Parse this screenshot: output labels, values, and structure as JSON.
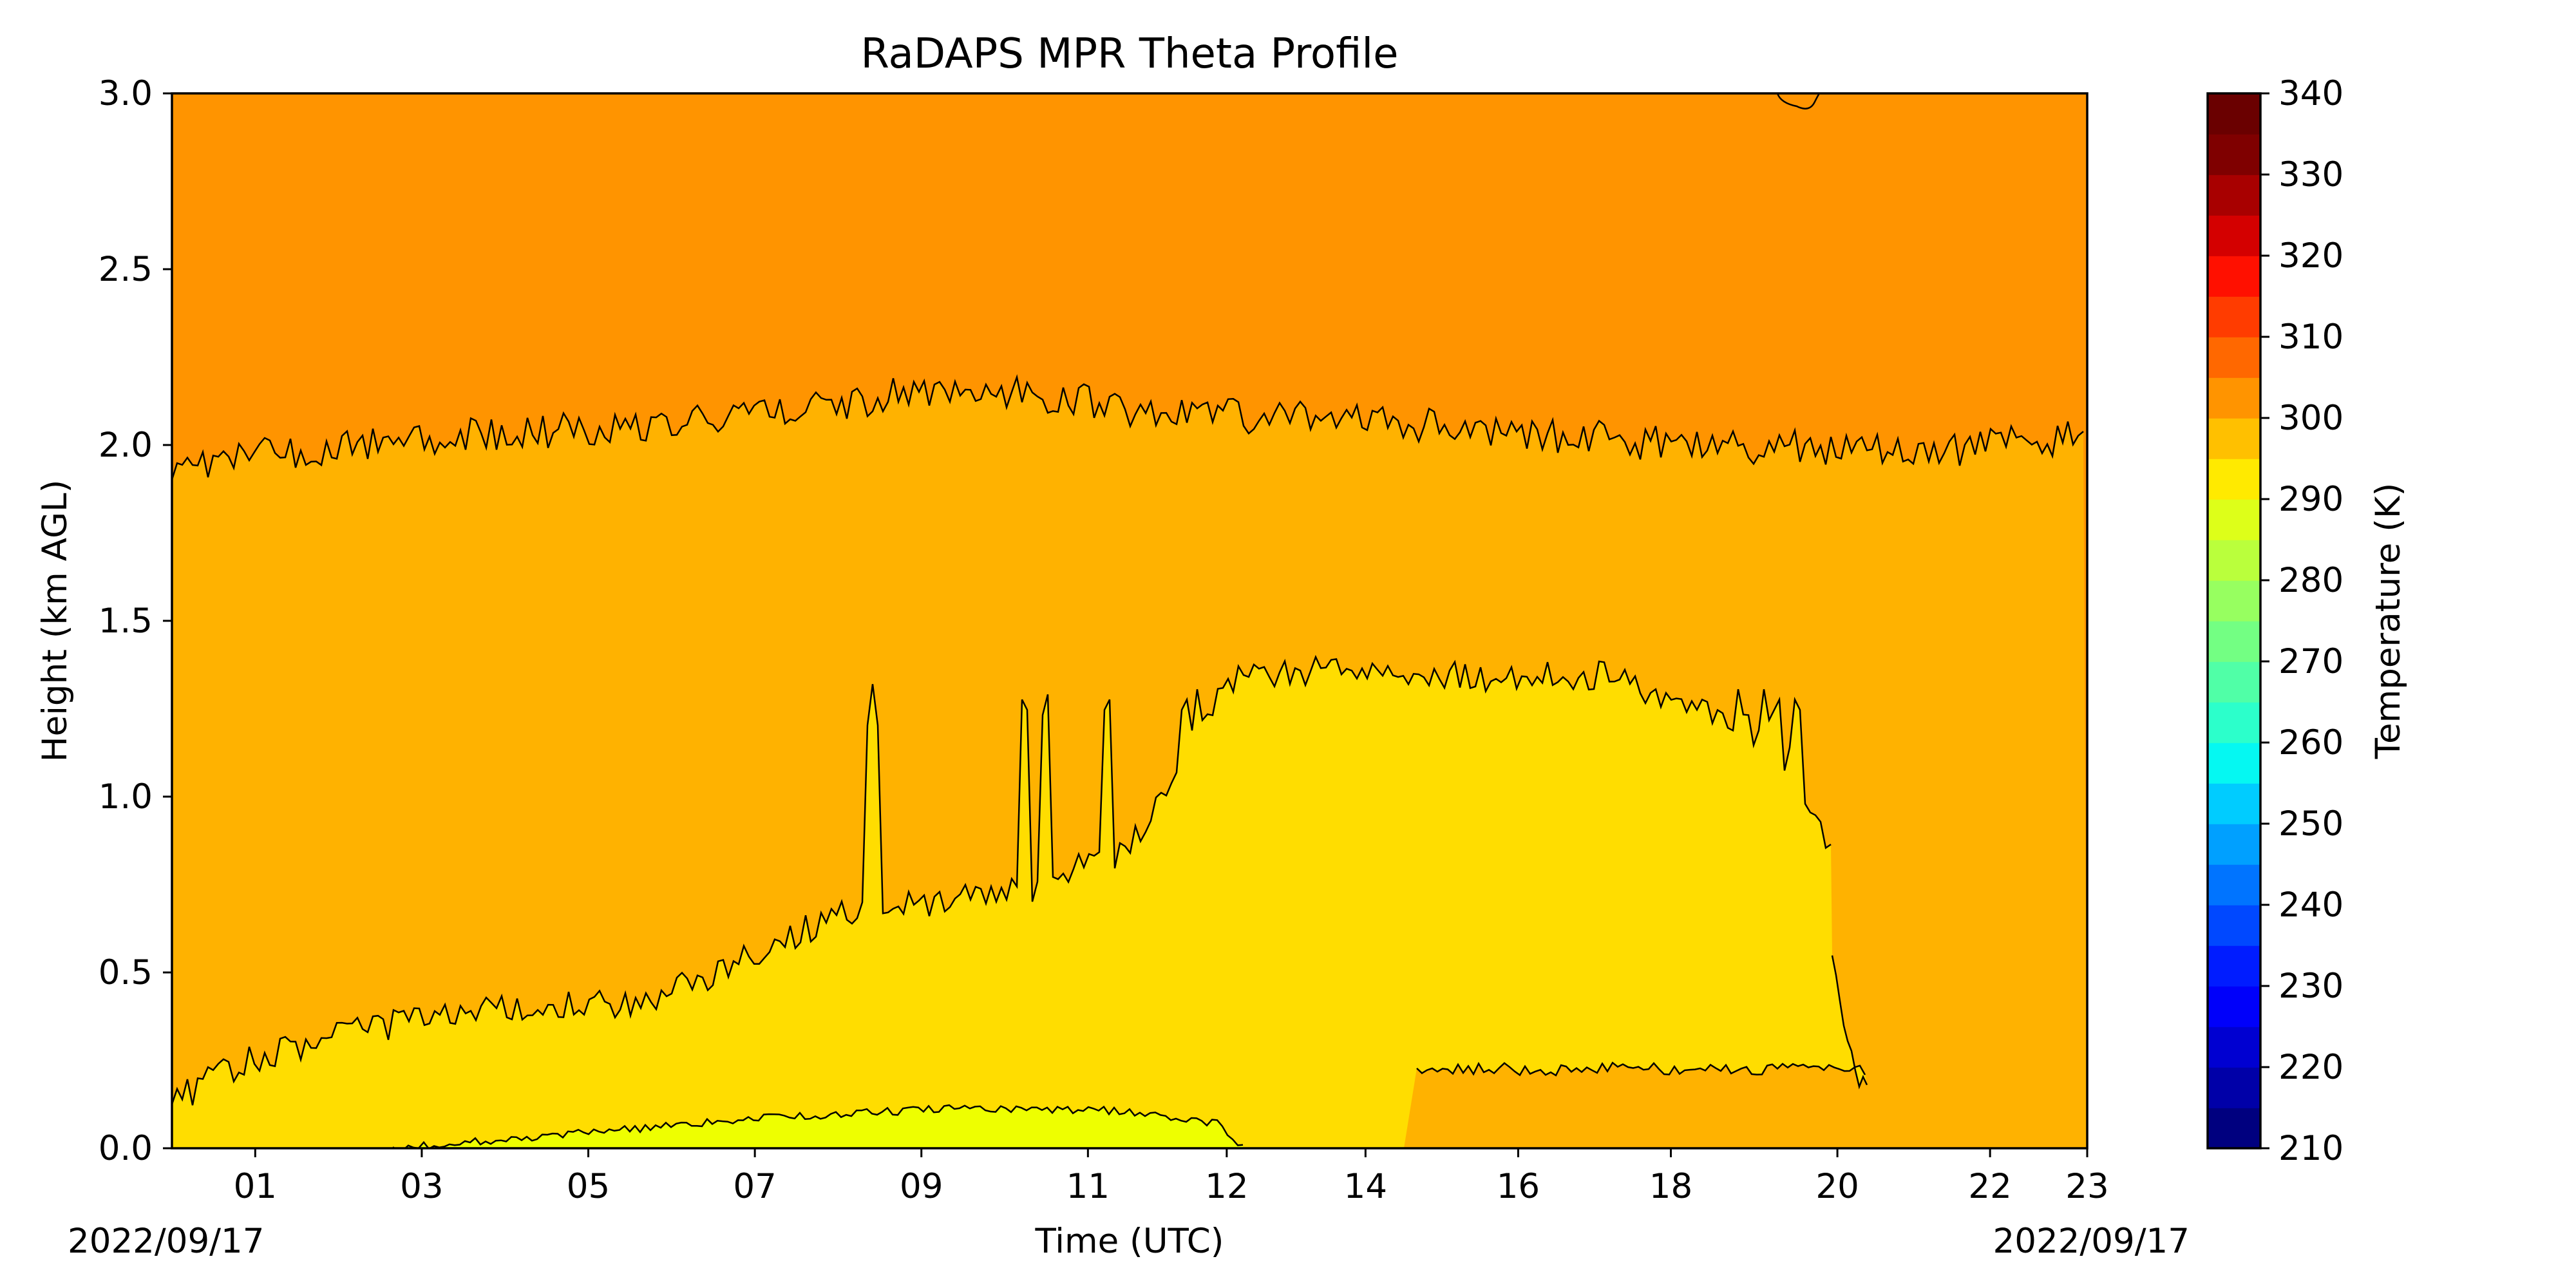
{
  "chart_data": {
    "type": "heatmap",
    "title": "RaDAPS MPR Theta Profile",
    "xlabel": "Time (UTC)",
    "ylabel": "Height (km AGL)",
    "start_date_label": "2022/09/17",
    "end_date_label": "2022/09/17",
    "xlim": [
      "2022-09-17T00:00",
      "2022-09-17T23:00"
    ],
    "x_ticks": [
      {
        "time": "2022-09-17T01:00",
        "label": "01"
      },
      {
        "time": "2022-09-17T03:00",
        "label": "03"
      },
      {
        "time": "2022-09-17T05:00",
        "label": "05"
      },
      {
        "time": "2022-09-17T07:00",
        "label": "07"
      },
      {
        "time": "2022-09-17T09:00",
        "label": "09"
      },
      {
        "time": "2022-09-17T11:00",
        "label": "11"
      },
      {
        "time": "2022-09-17T12:40",
        "label": "12"
      },
      {
        "time": "2022-09-17T14:20",
        "label": "14"
      },
      {
        "time": "2022-09-17T16:10",
        "label": "16"
      },
      {
        "time": "2022-09-17T18:00",
        "label": "18"
      },
      {
        "time": "2022-09-17T20:00",
        "label": "20"
      },
      {
        "time": "2022-09-17T21:50",
        "label": "22"
      },
      {
        "time": "2022-09-17T23:00",
        "label": "23"
      }
    ],
    "ylim": [
      0.0,
      3.0
    ],
    "y_ticks": [
      "0.0",
      "0.5",
      "1.0",
      "1.5",
      "2.0",
      "2.5",
      "3.0"
    ],
    "colorbar": {
      "label": "Temperature (K)",
      "range": [
        210,
        340
      ],
      "step": 5,
      "tick_labels": [
        "210",
        "220",
        "230",
        "240",
        "250",
        "260",
        "270",
        "280",
        "290",
        "300",
        "310",
        "320",
        "330",
        "340"
      ],
      "colors": [
        "#00007f",
        "#0000a8",
        "#0000d1",
        "#0000fa",
        "#001cff",
        "#0048ff",
        "#0074ff",
        "#00a0ff",
        "#00ccff",
        "#05f8f2",
        "#2cffcb",
        "#50ffa7",
        "#73ff83",
        "#97ff60",
        "#baff3c",
        "#ddff19",
        "#ffea00",
        "#ffc000",
        "#ff9400",
        "#ff6800",
        "#ff3c00",
        "#ff1000",
        "#d40000",
        "#a80000",
        "#7f0000",
        "#6a0000"
      ]
    },
    "contour_levels_K": [
      295,
      300,
      305
    ],
    "regions": [
      {
        "range_K": [
          305,
          310
        ],
        "color": "#ff9400",
        "note_height_km": "above ~2.3"
      },
      {
        "range_K": [
          300,
          305
        ],
        "color": "#ffb200",
        "note_height_km": "~0.3–2.3"
      },
      {
        "range_K": [
          295,
          300
        ],
        "color": "#ffdd00",
        "note_height_km": "below ~1.4 (midday)"
      },
      {
        "range_K": [
          290,
          295
        ],
        "color": "#eeff00",
        "note_height_km": "near surface 02–12"
      }
    ]
  }
}
